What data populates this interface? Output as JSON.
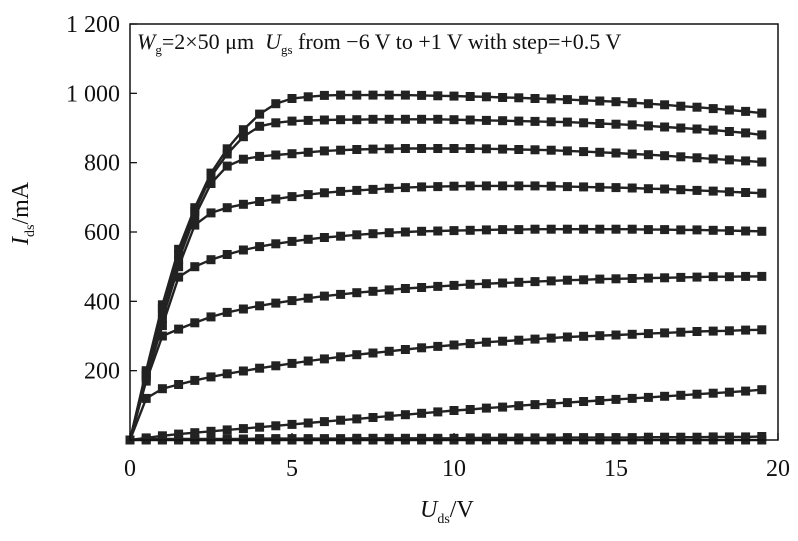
{
  "chart_data": {
    "type": "line",
    "title": "",
    "annotation": {
      "w_symbol": "W",
      "w_sub": "g",
      "w_value": "=2×50 μm",
      "u_symbol": "U",
      "u_sub": "gs",
      "u_text": " from −6 V to +1 V with step=+0.5 V"
    },
    "ylabel": {
      "symbol": "I",
      "sub": "ds",
      "unit": "/mA"
    },
    "xlabel": {
      "symbol": "U",
      "sub": "ds",
      "unit": "/V"
    },
    "xlim": [
      0,
      20
    ],
    "ylim": [
      0,
      1200
    ],
    "xticks": [
      0,
      5,
      10,
      15,
      20
    ],
    "yticks": [
      200,
      400,
      600,
      800,
      1000,
      1200
    ],
    "ytick_labels": [
      "200",
      "400",
      "600",
      "800",
      "1 000",
      "1 200"
    ],
    "xtick_labels": [
      "0",
      "5",
      "10",
      "15",
      "20"
    ],
    "grid": false,
    "marker": "square",
    "line_color": "#222222",
    "x": [
      0,
      0.5,
      1,
      1.5,
      2,
      2.5,
      3,
      3.5,
      4,
      4.5,
      5,
      5.5,
      6,
      6.5,
      7,
      7.5,
      8,
      8.5,
      9,
      9.5,
      10,
      10.5,
      11,
      11.5,
      12,
      12.5,
      13,
      13.5,
      14,
      14.5,
      15,
      15.5,
      16,
      16.5,
      17,
      17.5,
      18,
      18.5,
      19,
      19.5
    ],
    "series": [
      {
        "values": [
          0,
          200,
          390,
          550,
          670,
          770,
          840,
          895,
          940,
          970,
          985,
          990,
          994,
          995,
          995,
          995,
          995,
          995,
          994,
          993,
          992,
          991,
          990,
          988,
          987,
          985,
          984,
          982,
          980,
          978,
          976,
          973,
          970,
          967,
          963,
          960,
          956,
          952,
          948,
          943
        ]
      },
      {
        "values": [
          0,
          195,
          380,
          535,
          660,
          760,
          825,
          875,
          905,
          915,
          920,
          922,
          923,
          924,
          924,
          925,
          925,
          925,
          925,
          925,
          924,
          923,
          922,
          921,
          920,
          919,
          918,
          917,
          915,
          913,
          911,
          909,
          906,
          903,
          900,
          897,
          894,
          890,
          886,
          880
        ]
      },
      {
        "values": [
          0,
          190,
          365,
          520,
          645,
          740,
          790,
          810,
          818,
          822,
          826,
          830,
          834,
          836,
          838,
          839,
          840,
          841,
          841,
          841,
          841,
          841,
          840,
          839,
          838,
          837,
          836,
          834,
          832,
          830,
          828,
          825,
          823,
          820,
          817,
          814,
          811,
          808,
          805,
          802
        ]
      },
      {
        "values": [
          0,
          185,
          350,
          500,
          620,
          655,
          670,
          680,
          688,
          695,
          702,
          708,
          713,
          717,
          720,
          723,
          726,
          728,
          730,
          731,
          732,
          733,
          733,
          733,
          733,
          733,
          732,
          731,
          730,
          729,
          728,
          727,
          725,
          724,
          722,
          720,
          718,
          716,
          714,
          712
        ]
      },
      {
        "values": [
          0,
          180,
          330,
          470,
          500,
          520,
          535,
          548,
          558,
          566,
          573,
          579,
          584,
          588,
          592,
          595,
          598,
          600,
          602,
          603,
          604,
          605,
          606,
          607,
          607,
          608,
          608,
          608,
          608,
          608,
          608,
          608,
          607,
          607,
          606,
          606,
          605,
          604,
          603,
          602
        ]
      },
      {
        "values": [
          0,
          170,
          300,
          320,
          338,
          355,
          368,
          378,
          387,
          395,
          402,
          409,
          415,
          420,
          425,
          429,
          433,
          437,
          440,
          443,
          446,
          449,
          451,
          453,
          455,
          457,
          459,
          461,
          462,
          464,
          465,
          466,
          467,
          468,
          469,
          470,
          471,
          471,
          472,
          472
        ]
      },
      {
        "values": [
          0,
          120,
          148,
          160,
          172,
          182,
          191,
          199,
          207,
          214,
          221,
          228,
          234,
          240,
          246,
          251,
          256,
          261,
          266,
          270,
          274,
          278,
          282,
          285,
          288,
          291,
          294,
          297,
          299,
          301,
          303,
          305,
          307,
          309,
          311,
          313,
          314,
          315,
          317,
          318
        ]
      },
      {
        "values": [
          0,
          6,
          12,
          17,
          21,
          25,
          29,
          33,
          37,
          41,
          45,
          49,
          53,
          57,
          61,
          65,
          69,
          73,
          77,
          81,
          85,
          88,
          92,
          95,
          99,
          102,
          105,
          108,
          111,
          114,
          117,
          120,
          123,
          126,
          129,
          132,
          135,
          138,
          141,
          145
        ]
      },
      {
        "values": [
          0,
          2,
          3,
          3,
          3,
          3,
          3,
          3,
          4,
          4,
          4,
          4,
          4,
          4,
          5,
          5,
          5,
          5,
          5,
          5,
          5,
          6,
          6,
          6,
          6,
          6,
          6,
          7,
          7,
          7,
          7,
          7,
          8,
          8,
          8,
          8,
          9,
          9,
          9,
          10
        ]
      },
      {
        "values": [
          0,
          0,
          0,
          0,
          0,
          0,
          0,
          0,
          0,
          0,
          0,
          0,
          0,
          0,
          0,
          0,
          0,
          0,
          0,
          0,
          0,
          0,
          0,
          0,
          0,
          0,
          0,
          0,
          0,
          0,
          0,
          0,
          0,
          0,
          0,
          0,
          0,
          0,
          0,
          0
        ]
      }
    ]
  }
}
